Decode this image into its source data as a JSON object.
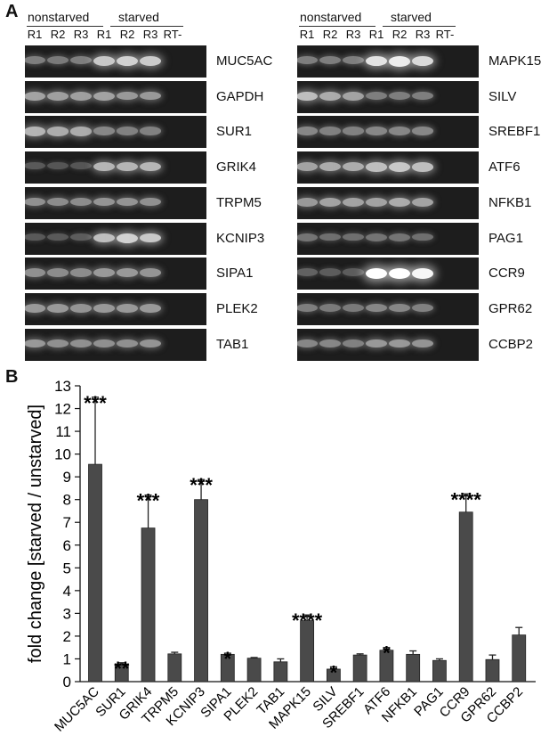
{
  "panel_a": {
    "letter": "A",
    "group_labels": {
      "nonstarved": "nonstarved",
      "starved": "starved"
    },
    "lanes": [
      "R1",
      "R2",
      "R3",
      "R1",
      "R2",
      "R3",
      "RT-"
    ],
    "left_genes": [
      {
        "name": "MUC5AC",
        "intensity": [
          0.3,
          0.28,
          0.3,
          0.7,
          0.75,
          0.72,
          0
        ]
      },
      {
        "name": "GAPDH",
        "intensity": [
          0.5,
          0.48,
          0.48,
          0.5,
          0.45,
          0.45,
          0
        ]
      },
      {
        "name": "SUR1",
        "intensity": [
          0.6,
          0.55,
          0.55,
          0.35,
          0.32,
          0.32,
          0
        ]
      },
      {
        "name": "GRIK4",
        "intensity": [
          0.1,
          0.08,
          0.08,
          0.6,
          0.6,
          0.6,
          0
        ]
      },
      {
        "name": "TRPM5",
        "intensity": [
          0.4,
          0.38,
          0.38,
          0.42,
          0.42,
          0.4,
          0
        ]
      },
      {
        "name": "KCNIP3",
        "intensity": [
          0.1,
          0.1,
          0.12,
          0.65,
          0.75,
          0.7,
          0
        ]
      },
      {
        "name": "SIPA1",
        "intensity": [
          0.4,
          0.38,
          0.38,
          0.45,
          0.45,
          0.42,
          0
        ]
      },
      {
        "name": "PLEK2",
        "intensity": [
          0.45,
          0.45,
          0.42,
          0.45,
          0.45,
          0.45,
          0
        ]
      },
      {
        "name": "TAB1",
        "intensity": [
          0.45,
          0.4,
          0.4,
          0.4,
          0.4,
          0.42,
          0
        ]
      }
    ],
    "right_genes": [
      {
        "name": "MAPK15",
        "intensity": [
          0.3,
          0.3,
          0.3,
          0.85,
          0.9,
          0.8,
          0
        ]
      },
      {
        "name": "SILV",
        "intensity": [
          0.65,
          0.55,
          0.5,
          0.3,
          0.3,
          0.3,
          0
        ]
      },
      {
        "name": "SREBF1",
        "intensity": [
          0.35,
          0.32,
          0.32,
          0.35,
          0.35,
          0.35,
          0
        ]
      },
      {
        "name": "ATF6",
        "intensity": [
          0.5,
          0.55,
          0.55,
          0.65,
          0.7,
          0.65,
          0
        ]
      },
      {
        "name": "NFKB1",
        "intensity": [
          0.45,
          0.5,
          0.5,
          0.5,
          0.55,
          0.5,
          0
        ]
      },
      {
        "name": "PAG1",
        "intensity": [
          0.25,
          0.22,
          0.22,
          0.25,
          0.25,
          0.22,
          0
        ]
      },
      {
        "name": "CCR9",
        "intensity": [
          0.15,
          0.12,
          0.12,
          1.0,
          1.0,
          0.95,
          0
        ]
      },
      {
        "name": "GPR62",
        "intensity": [
          0.3,
          0.28,
          0.28,
          0.35,
          0.35,
          0.32,
          0
        ]
      },
      {
        "name": "CCBP2",
        "intensity": [
          0.35,
          0.35,
          0.32,
          0.45,
          0.45,
          0.42,
          0
        ]
      }
    ]
  },
  "panel_b": {
    "letter": "B"
  },
  "chart_data": {
    "type": "bar",
    "ylabel": "fold change [starved / unstarved]",
    "ylim": [
      0,
      13
    ],
    "yticks": [
      0,
      1,
      2,
      3,
      4,
      5,
      6,
      7,
      8,
      9,
      10,
      11,
      12,
      13
    ],
    "categories": [
      "MUC5AC",
      "SUR1",
      "GRIK4",
      "TRPM5",
      "KCNIP3",
      "SIPA1",
      "PLEK2",
      "TAB1",
      "MAPK15",
      "SILV",
      "SREBF1",
      "ATF6",
      "NFKB1",
      "PAG1",
      "CCR9",
      "GPR62",
      "CCBP2"
    ],
    "values": [
      9.55,
      0.78,
      6.75,
      1.22,
      8.0,
      1.2,
      1.03,
      0.87,
      2.68,
      0.55,
      1.17,
      1.38,
      1.2,
      0.93,
      7.45,
      0.97,
      2.05
    ],
    "errors": [
      2.95,
      0.05,
      1.45,
      0.07,
      0.88,
      0.05,
      0.03,
      0.13,
      0.25,
      0.1,
      0.05,
      0.12,
      0.15,
      0.07,
      0.8,
      0.2,
      0.33
    ],
    "significance": [
      "***",
      "**",
      "***",
      "",
      "***",
      "*",
      "",
      "",
      "****",
      "*",
      "",
      "*",
      "",
      "",
      "****",
      "",
      ""
    ],
    "bar_color": "#4a4a4a"
  }
}
